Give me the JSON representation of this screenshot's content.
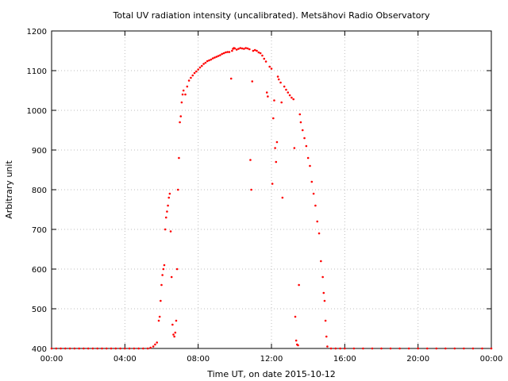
{
  "chart_data": {
    "type": "scatter",
    "title": "Total UV radiation intensity (uncalibrated). Metsähovi Radio Observatory",
    "xlabel": "Time UT, on date 2015-10-12",
    "ylabel": "Arbitrary unit",
    "x_unit": "hours UT",
    "xlim": [
      0,
      24
    ],
    "ylim": [
      400,
      1200
    ],
    "grid": true,
    "series_color": "#ff0000",
    "x_ticks": [
      {
        "value": 0,
        "label": "00:00"
      },
      {
        "value": 4,
        "label": "04:00"
      },
      {
        "value": 8,
        "label": "08:00"
      },
      {
        "value": 12,
        "label": "12:00"
      },
      {
        "value": 16,
        "label": "16:00"
      },
      {
        "value": 20,
        "label": "20:00"
      },
      {
        "value": 24,
        "label": "00:00"
      }
    ],
    "y_ticks": [
      {
        "value": 400,
        "label": "400"
      },
      {
        "value": 500,
        "label": "500"
      },
      {
        "value": 600,
        "label": "600"
      },
      {
        "value": 700,
        "label": "700"
      },
      {
        "value": 800,
        "label": "800"
      },
      {
        "value": 900,
        "label": "900"
      },
      {
        "value": 1000,
        "label": "1000"
      },
      {
        "value": 1100,
        "label": "1100"
      },
      {
        "value": 1200,
        "label": "1200"
      }
    ],
    "points": [
      [
        0.0,
        400
      ],
      [
        0.25,
        400
      ],
      [
        0.5,
        400
      ],
      [
        0.75,
        400
      ],
      [
        1.0,
        400
      ],
      [
        1.25,
        400
      ],
      [
        1.5,
        400
      ],
      [
        1.75,
        400
      ],
      [
        2.0,
        400
      ],
      [
        2.25,
        400
      ],
      [
        2.5,
        400
      ],
      [
        2.75,
        400
      ],
      [
        3.0,
        400
      ],
      [
        3.25,
        400
      ],
      [
        3.5,
        400
      ],
      [
        3.75,
        400
      ],
      [
        4.0,
        400
      ],
      [
        4.25,
        400
      ],
      [
        4.5,
        400
      ],
      [
        4.75,
        400
      ],
      [
        5.0,
        400
      ],
      [
        5.25,
        400
      ],
      [
        5.4,
        402
      ],
      [
        5.55,
        405
      ],
      [
        5.65,
        410
      ],
      [
        5.75,
        415
      ],
      [
        5.85,
        470
      ],
      [
        5.9,
        480
      ],
      [
        5.95,
        520
      ],
      [
        6.0,
        560
      ],
      [
        6.05,
        585
      ],
      [
        6.1,
        600
      ],
      [
        6.15,
        610
      ],
      [
        6.2,
        700
      ],
      [
        6.25,
        730
      ],
      [
        6.3,
        745
      ],
      [
        6.35,
        760
      ],
      [
        6.4,
        780
      ],
      [
        6.45,
        790
      ],
      [
        6.5,
        695
      ],
      [
        6.55,
        580
      ],
      [
        6.6,
        460
      ],
      [
        6.65,
        435
      ],
      [
        6.7,
        430
      ],
      [
        6.75,
        440
      ],
      [
        6.8,
        470
      ],
      [
        6.85,
        600
      ],
      [
        6.9,
        800
      ],
      [
        6.95,
        880
      ],
      [
        7.0,
        970
      ],
      [
        7.05,
        985
      ],
      [
        7.1,
        1020
      ],
      [
        7.15,
        1040
      ],
      [
        7.2,
        1050
      ],
      [
        7.3,
        1040
      ],
      [
        7.4,
        1060
      ],
      [
        7.5,
        1075
      ],
      [
        7.6,
        1082
      ],
      [
        7.7,
        1088
      ],
      [
        7.8,
        1094
      ],
      [
        7.9,
        1098
      ],
      [
        8.0,
        1103
      ],
      [
        8.1,
        1108
      ],
      [
        8.2,
        1112
      ],
      [
        8.3,
        1117
      ],
      [
        8.4,
        1120
      ],
      [
        8.5,
        1124
      ],
      [
        8.6,
        1126
      ],
      [
        8.7,
        1128
      ],
      [
        8.8,
        1131
      ],
      [
        8.9,
        1133
      ],
      [
        9.0,
        1135
      ],
      [
        9.1,
        1137
      ],
      [
        9.2,
        1139
      ],
      [
        9.3,
        1142
      ],
      [
        9.4,
        1144
      ],
      [
        9.5,
        1146
      ],
      [
        9.6,
        1147
      ],
      [
        9.7,
        1147
      ],
      [
        9.8,
        1080
      ],
      [
        9.85,
        1150
      ],
      [
        9.9,
        1155
      ],
      [
        9.95,
        1157
      ],
      [
        10.0,
        1156
      ],
      [
        10.1,
        1153
      ],
      [
        10.2,
        1155
      ],
      [
        10.3,
        1157
      ],
      [
        10.4,
        1156
      ],
      [
        10.5,
        1155
      ],
      [
        10.6,
        1157
      ],
      [
        10.7,
        1156
      ],
      [
        10.8,
        1154
      ],
      [
        10.85,
        875
      ],
      [
        10.9,
        800
      ],
      [
        10.95,
        1073
      ],
      [
        11.0,
        1150
      ],
      [
        11.1,
        1152
      ],
      [
        11.2,
        1150
      ],
      [
        11.3,
        1146
      ],
      [
        11.4,
        1144
      ],
      [
        11.5,
        1138
      ],
      [
        11.6,
        1130
      ],
      [
        11.7,
        1123
      ],
      [
        11.75,
        1045
      ],
      [
        11.8,
        1035
      ],
      [
        11.9,
        1110
      ],
      [
        12.0,
        1105
      ],
      [
        12.05,
        815
      ],
      [
        12.1,
        980
      ],
      [
        12.15,
        1025
      ],
      [
        12.2,
        905
      ],
      [
        12.25,
        870
      ],
      [
        12.3,
        920
      ],
      [
        12.35,
        1085
      ],
      [
        12.4,
        1078
      ],
      [
        12.5,
        1070
      ],
      [
        12.55,
        1020
      ],
      [
        12.6,
        780
      ],
      [
        12.7,
        1060
      ],
      [
        12.8,
        1052
      ],
      [
        12.9,
        1045
      ],
      [
        13.0,
        1038
      ],
      [
        13.1,
        1032
      ],
      [
        13.2,
        1028
      ],
      [
        13.25,
        905
      ],
      [
        13.3,
        480
      ],
      [
        13.35,
        420
      ],
      [
        13.4,
        410
      ],
      [
        13.45,
        408
      ],
      [
        13.5,
        560
      ],
      [
        13.55,
        990
      ],
      [
        13.6,
        970
      ],
      [
        13.7,
        950
      ],
      [
        13.8,
        930
      ],
      [
        13.9,
        910
      ],
      [
        14.0,
        880
      ],
      [
        14.1,
        860
      ],
      [
        14.2,
        820
      ],
      [
        14.3,
        790
      ],
      [
        14.4,
        760
      ],
      [
        14.5,
        720
      ],
      [
        14.6,
        690
      ],
      [
        14.7,
        620
      ],
      [
        14.8,
        580
      ],
      [
        14.85,
        540
      ],
      [
        14.9,
        520
      ],
      [
        14.95,
        470
      ],
      [
        15.0,
        430
      ],
      [
        15.05,
        405
      ],
      [
        15.25,
        400
      ],
      [
        15.5,
        400
      ],
      [
        15.75,
        400
      ],
      [
        16.0,
        400
      ],
      [
        16.5,
        400
      ],
      [
        17.0,
        400
      ],
      [
        17.5,
        400
      ],
      [
        18.0,
        400
      ],
      [
        18.5,
        400
      ],
      [
        19.0,
        400
      ],
      [
        19.5,
        400
      ],
      [
        20.0,
        400
      ],
      [
        20.5,
        400
      ],
      [
        21.0,
        400
      ],
      [
        21.5,
        400
      ],
      [
        22.0,
        400
      ],
      [
        22.5,
        400
      ],
      [
        23.0,
        400
      ],
      [
        23.5,
        400
      ],
      [
        24.0,
        400
      ]
    ]
  }
}
